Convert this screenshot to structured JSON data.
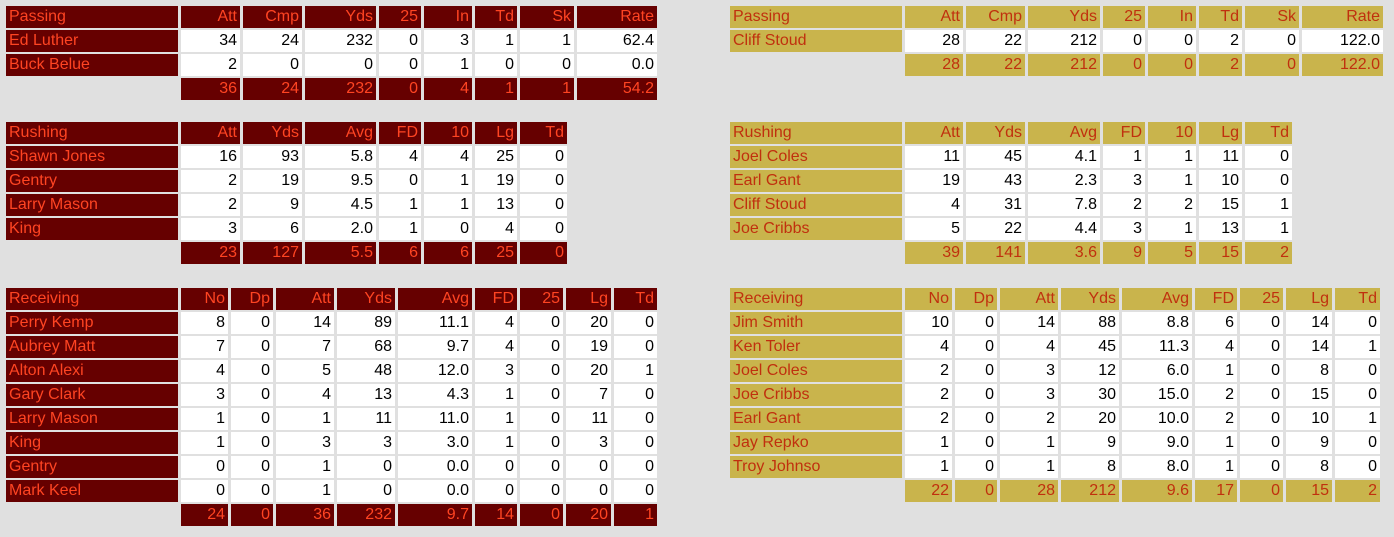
{
  "colors": {
    "home_header_bg": "#660000",
    "home_header_text": "#ff4422",
    "away_header_bg": "#c9b44c",
    "away_header_text": "#c0300e",
    "background": "#e0e0e0"
  },
  "tables": [
    {
      "id": "left-passing",
      "theme": "maroon",
      "title": "Passing",
      "columns": [
        "Att",
        "Cmp",
        "Yds",
        "25",
        "In",
        "Td",
        "Sk",
        "Rate"
      ],
      "rows": [
        {
          "name": "Ed Luther",
          "values": [
            "34",
            "24",
            "232",
            "0",
            "3",
            "1",
            "1",
            "62.4"
          ]
        },
        {
          "name": "Buck Belue",
          "values": [
            "2",
            "0",
            "0",
            "0",
            "1",
            "0",
            "0",
            "0.0"
          ]
        }
      ],
      "totals": [
        "36",
        "24",
        "232",
        "0",
        "4",
        "1",
        "1",
        "54.2"
      ]
    },
    {
      "id": "left-rushing",
      "theme": "maroon",
      "title": "Rushing",
      "columns": [
        "Att",
        "Yds",
        "Avg",
        "FD",
        "10",
        "Lg",
        "Td"
      ],
      "rows": [
        {
          "name": "Shawn Jones",
          "values": [
            "16",
            "93",
            "5.8",
            "4",
            "4",
            "25",
            "0"
          ]
        },
        {
          "name": "Gentry",
          "values": [
            "2",
            "19",
            "9.5",
            "0",
            "1",
            "19",
            "0"
          ]
        },
        {
          "name": "Larry Mason",
          "values": [
            "2",
            "9",
            "4.5",
            "1",
            "1",
            "13",
            "0"
          ]
        },
        {
          "name": "King",
          "values": [
            "3",
            "6",
            "2.0",
            "1",
            "0",
            "4",
            "0"
          ]
        }
      ],
      "totals": [
        "23",
        "127",
        "5.5",
        "6",
        "6",
        "25",
        "0"
      ]
    },
    {
      "id": "left-receiving",
      "theme": "maroon",
      "title": "Receiving",
      "columns": [
        "No",
        "Dp",
        "Att",
        "Yds",
        "Avg",
        "FD",
        "25",
        "Lg",
        "Td"
      ],
      "rows": [
        {
          "name": "Perry Kemp",
          "values": [
            "8",
            "0",
            "14",
            "89",
            "11.1",
            "4",
            "0",
            "20",
            "0"
          ]
        },
        {
          "name": "Aubrey Matt",
          "values": [
            "7",
            "0",
            "7",
            "68",
            "9.7",
            "4",
            "0",
            "19",
            "0"
          ]
        },
        {
          "name": "Alton Alexi",
          "values": [
            "4",
            "0",
            "5",
            "48",
            "12.0",
            "3",
            "0",
            "20",
            "1"
          ]
        },
        {
          "name": "Gary Clark",
          "values": [
            "3",
            "0",
            "4",
            "13",
            "4.3",
            "1",
            "0",
            "7",
            "0"
          ]
        },
        {
          "name": "Larry Mason",
          "values": [
            "1",
            "0",
            "1",
            "11",
            "11.0",
            "1",
            "0",
            "11",
            "0"
          ]
        },
        {
          "name": "King",
          "values": [
            "1",
            "0",
            "3",
            "3",
            "3.0",
            "1",
            "0",
            "3",
            "0"
          ]
        },
        {
          "name": "Gentry",
          "values": [
            "0",
            "0",
            "1",
            "0",
            "0.0",
            "0",
            "0",
            "0",
            "0"
          ]
        },
        {
          "name": "Mark Keel",
          "values": [
            "0",
            "0",
            "1",
            "0",
            "0.0",
            "0",
            "0",
            "0",
            "0"
          ]
        }
      ],
      "totals": [
        "24",
        "0",
        "36",
        "232",
        "9.7",
        "14",
        "0",
        "20",
        "1"
      ]
    },
    {
      "id": "right-passing",
      "theme": "gold",
      "title": "Passing",
      "columns": [
        "Att",
        "Cmp",
        "Yds",
        "25",
        "In",
        "Td",
        "Sk",
        "Rate"
      ],
      "rows": [
        {
          "name": "Cliff Stoud",
          "values": [
            "28",
            "22",
            "212",
            "0",
            "0",
            "2",
            "0",
            "122.0"
          ]
        }
      ],
      "totals": [
        "28",
        "22",
        "212",
        "0",
        "0",
        "2",
        "0",
        "122.0"
      ]
    },
    {
      "id": "right-rushing",
      "theme": "gold",
      "title": "Rushing",
      "columns": [
        "Att",
        "Yds",
        "Avg",
        "FD",
        "10",
        "Lg",
        "Td"
      ],
      "rows": [
        {
          "name": "Joel Coles",
          "values": [
            "11",
            "45",
            "4.1",
            "1",
            "1",
            "11",
            "0"
          ]
        },
        {
          "name": "Earl Gant",
          "values": [
            "19",
            "43",
            "2.3",
            "3",
            "1",
            "10",
            "0"
          ]
        },
        {
          "name": "Cliff Stoud",
          "values": [
            "4",
            "31",
            "7.8",
            "2",
            "2",
            "15",
            "1"
          ]
        },
        {
          "name": "Joe Cribbs",
          "values": [
            "5",
            "22",
            "4.4",
            "3",
            "1",
            "13",
            "1"
          ]
        }
      ],
      "totals": [
        "39",
        "141",
        "3.6",
        "9",
        "5",
        "15",
        "2"
      ]
    },
    {
      "id": "right-receiving",
      "theme": "gold",
      "title": "Receiving",
      "columns": [
        "No",
        "Dp",
        "Att",
        "Yds",
        "Avg",
        "FD",
        "25",
        "Lg",
        "Td"
      ],
      "rows": [
        {
          "name": "Jim Smith",
          "values": [
            "10",
            "0",
            "14",
            "88",
            "8.8",
            "6",
            "0",
            "14",
            "0"
          ]
        },
        {
          "name": "Ken Toler",
          "values": [
            "4",
            "0",
            "4",
            "45",
            "11.3",
            "4",
            "0",
            "14",
            "1"
          ]
        },
        {
          "name": "Joel Coles",
          "values": [
            "2",
            "0",
            "3",
            "12",
            "6.0",
            "1",
            "0",
            "8",
            "0"
          ]
        },
        {
          "name": "Joe Cribbs",
          "values": [
            "2",
            "0",
            "3",
            "30",
            "15.0",
            "2",
            "0",
            "15",
            "0"
          ]
        },
        {
          "name": "Earl Gant",
          "values": [
            "2",
            "0",
            "2",
            "20",
            "10.0",
            "2",
            "0",
            "10",
            "1"
          ]
        },
        {
          "name": "Jay Repko",
          "values": [
            "1",
            "0",
            "1",
            "9",
            "9.0",
            "1",
            "0",
            "9",
            "0"
          ]
        },
        {
          "name": "Troy Johnso",
          "values": [
            "1",
            "0",
            "1",
            "8",
            "8.0",
            "1",
            "0",
            "8",
            "0"
          ]
        }
      ],
      "totals": [
        "22",
        "0",
        "28",
        "212",
        "9.6",
        "17",
        "0",
        "15",
        "2"
      ]
    }
  ]
}
